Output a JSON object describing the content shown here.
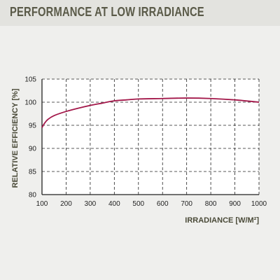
{
  "page_title": "PERFORMANCE AT LOW IRRADIANCE",
  "colors": {
    "line": "#a3184a",
    "text": "#5a5a48",
    "grid": "#222222",
    "header_bg": "#e3e3df",
    "plot_bg": "#ffffff"
  },
  "chart_data": {
    "type": "line",
    "title": "PERFORMANCE AT LOW IRRADIANCE",
    "xlabel": "IRRADIANCE [W/M²]",
    "ylabel": "RELATIVE EFFICIENCY [%]",
    "xlim": [
      100,
      1000
    ],
    "ylim": [
      80,
      105
    ],
    "xticks": [
      100,
      200,
      300,
      400,
      500,
      600,
      700,
      800,
      900,
      1000
    ],
    "yticks": [
      80,
      85,
      90,
      95,
      100,
      105
    ],
    "grid": true,
    "series": [
      {
        "x": [
          100,
          110,
          125,
          150,
          200,
          250,
          300,
          350,
          400,
          450,
          500,
          600,
          700,
          800,
          900,
          1000
        ],
        "y": [
          94.5,
          95.4,
          96.3,
          97.1,
          98.0,
          98.7,
          99.3,
          99.8,
          100.3,
          100.5,
          100.7,
          100.8,
          100.9,
          100.8,
          100.5,
          100.0
        ]
      }
    ]
  }
}
